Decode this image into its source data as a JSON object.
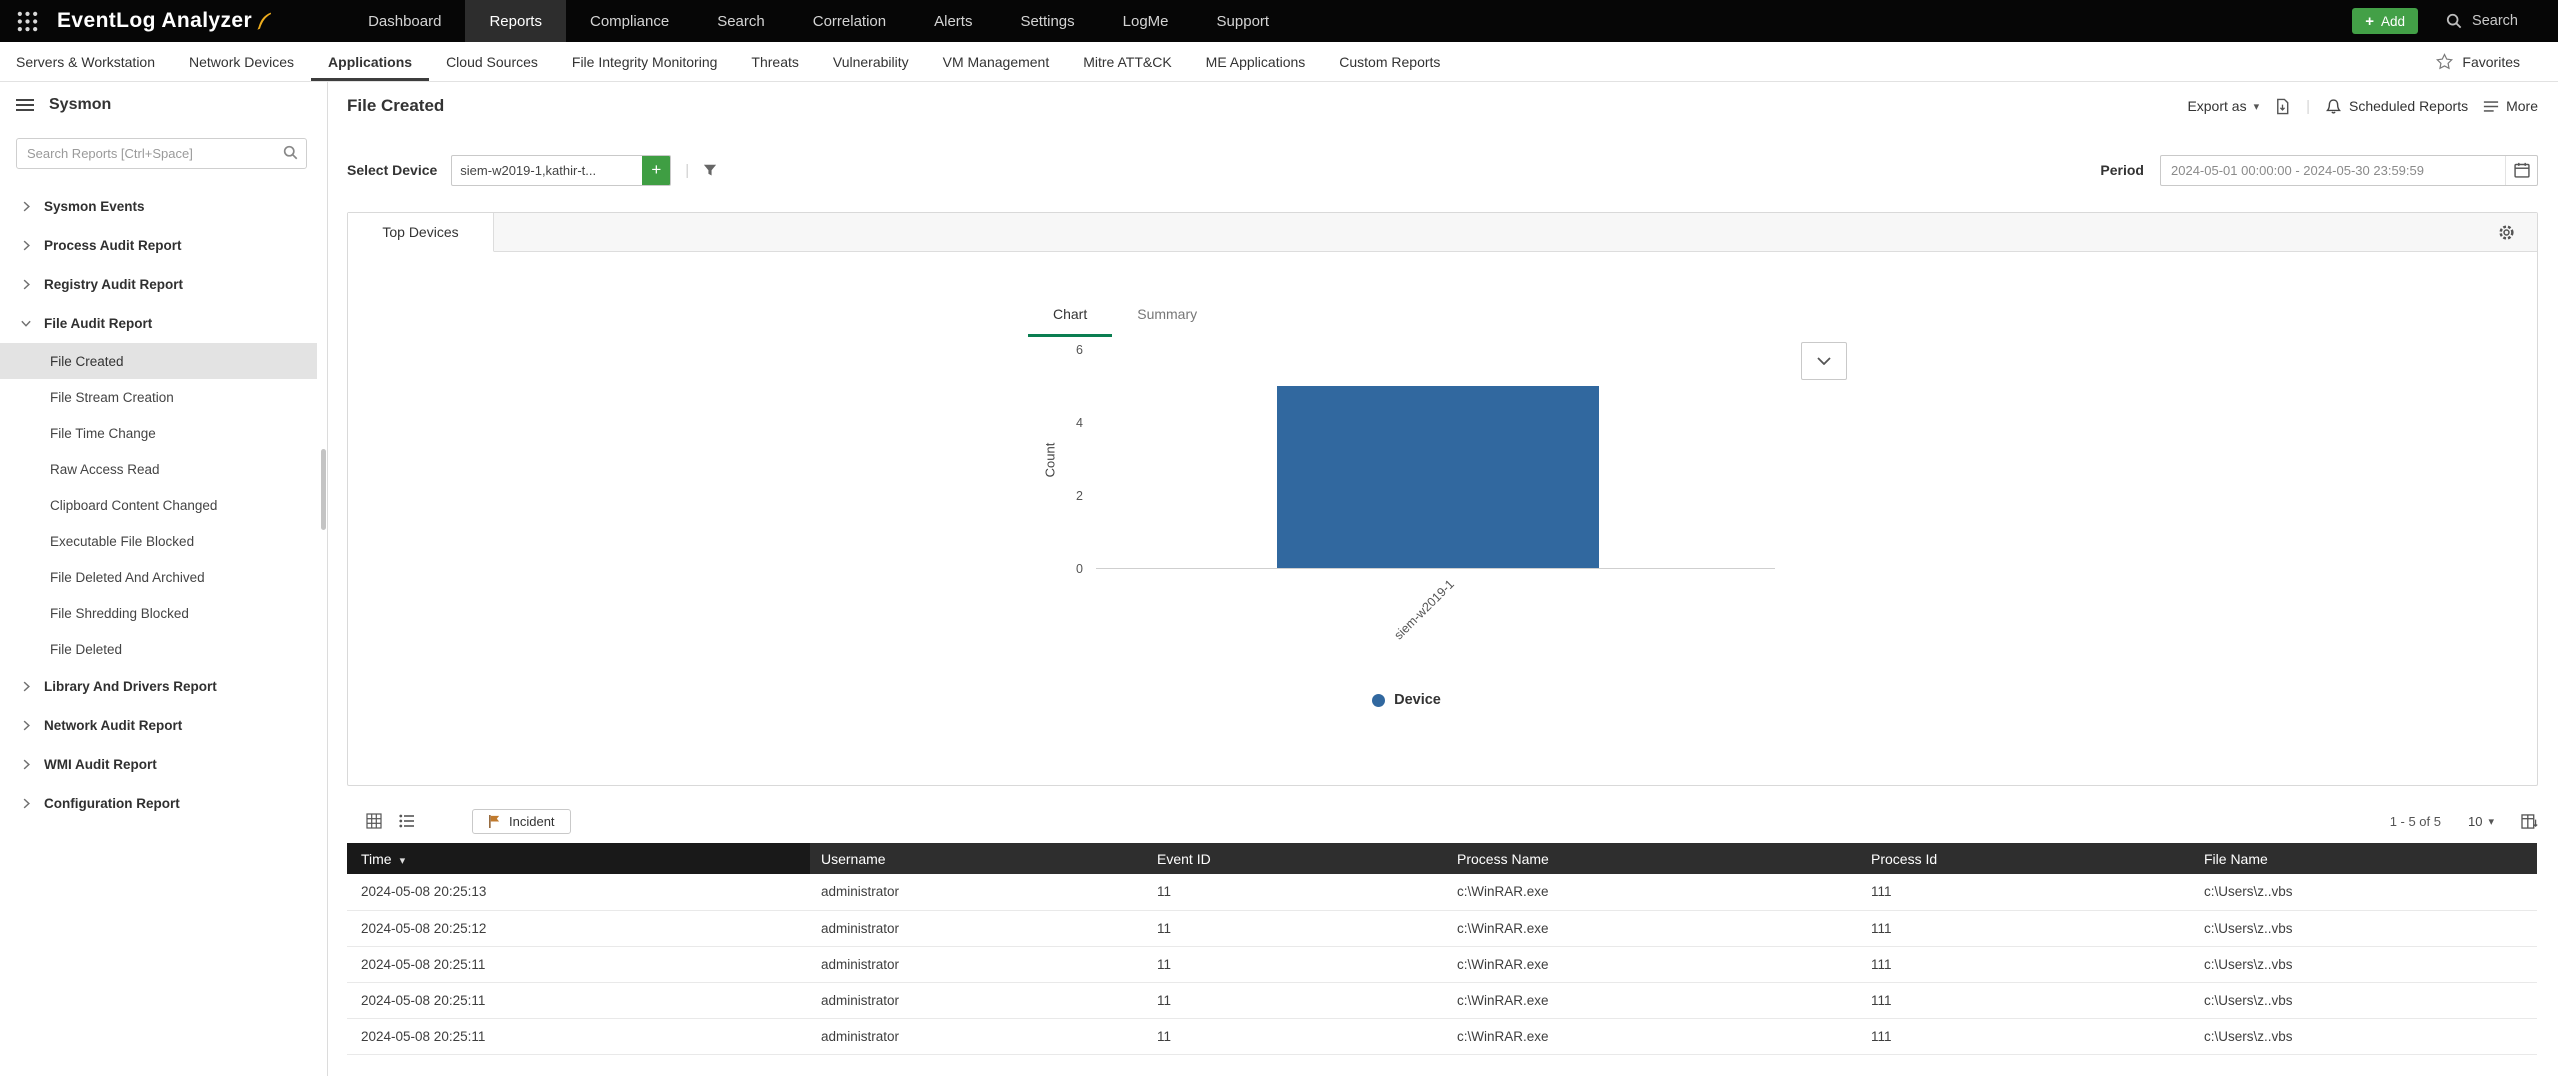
{
  "glyphs": {
    "caret_down": "▾",
    "plus": "+",
    "divider": "|"
  },
  "topbar": {
    "logo": "EventLog Analyzer",
    "nav": [
      {
        "label": "Dashboard"
      },
      {
        "label": "Reports",
        "active": true
      },
      {
        "label": "Compliance"
      },
      {
        "label": "Search"
      },
      {
        "label": "Correlation"
      },
      {
        "label": "Alerts"
      },
      {
        "label": "Settings"
      },
      {
        "label": "LogMe"
      },
      {
        "label": "Support"
      }
    ],
    "add_label": "Add",
    "search_label": "Search"
  },
  "subnav": {
    "items": [
      {
        "label": "Servers & Workstation"
      },
      {
        "label": "Network Devices"
      },
      {
        "label": "Applications",
        "active": true
      },
      {
        "label": "Cloud Sources"
      },
      {
        "label": "File Integrity Monitoring"
      },
      {
        "label": "Threats"
      },
      {
        "label": "Vulnerability"
      },
      {
        "label": "VM Management"
      },
      {
        "label": "Mitre ATT&CK"
      },
      {
        "label": "ME Applications"
      },
      {
        "label": "Custom Reports"
      }
    ],
    "favorites_label": "Favorites"
  },
  "sidebar": {
    "title": "Sysmon",
    "search_placeholder": "Search Reports [Ctrl+Space]",
    "groups": [
      {
        "label": "Sysmon Events",
        "expanded": false
      },
      {
        "label": "Process Audit Report",
        "expanded": false
      },
      {
        "label": "Registry Audit Report",
        "expanded": false
      },
      {
        "label": "File Audit Report",
        "expanded": true,
        "children": [
          {
            "label": "File Created",
            "selected": true
          },
          {
            "label": "File Stream Creation"
          },
          {
            "label": "File Time Change"
          },
          {
            "label": "Raw Access Read"
          },
          {
            "label": "Clipboard Content Changed"
          },
          {
            "label": "Executable File Blocked"
          },
          {
            "label": "File Deleted And Archived"
          },
          {
            "label": "File Shredding Blocked"
          },
          {
            "label": "File Deleted"
          }
        ]
      },
      {
        "label": "Library And Drivers Report",
        "expanded": false
      },
      {
        "label": "Network Audit Report",
        "expanded": false
      },
      {
        "label": "WMI Audit Report",
        "expanded": false
      },
      {
        "label": "Configuration Report",
        "expanded": false
      }
    ]
  },
  "report": {
    "title": "File Created",
    "export_as_label": "Export as",
    "scheduled_reports_label": "Scheduled Reports",
    "more_label": "More",
    "select_device_label": "Select Device",
    "device_value": "siem-w2019-1,kathir-t...",
    "period_label": "Period",
    "period_value": "2024-05-01 00:00:00 - 2024-05-30 23:59:59",
    "panel_tab_label": "Top Devices",
    "chart_tab_label": "Chart",
    "summary_tab_label": "Summary",
    "incident_label": "Incident",
    "pagination_range": "1 - 5 of 5",
    "page_size": "10"
  },
  "chart_data": {
    "type": "bar",
    "title": "Top Devices",
    "categories": [
      "siem-w2019-1"
    ],
    "values": [
      5
    ],
    "xlabel": "",
    "ylabel": "Count",
    "yticks": [
      0,
      2,
      4,
      6
    ],
    "ylim": [
      0,
      6
    ],
    "grid": false,
    "bar_color": "#31689f",
    "legend_position": "bottom",
    "legend": [
      {
        "label": "Device",
        "color": "#31689f"
      }
    ]
  },
  "table": {
    "columns": [
      {
        "label": "Time",
        "sorted": "desc"
      },
      {
        "label": "Username"
      },
      {
        "label": "Event ID"
      },
      {
        "label": "Process Name"
      },
      {
        "label": "Process Id"
      },
      {
        "label": "File Name"
      }
    ],
    "rows": [
      {
        "time": "2024-05-08 20:25:13",
        "username": "administrator",
        "event_id": "11",
        "process_name": "c:\\WinRAR.exe",
        "process_id": "111",
        "file_name": "c:\\Users\\z..vbs"
      },
      {
        "time": "2024-05-08 20:25:12",
        "username": "administrator",
        "event_id": "11",
        "process_name": "c:\\WinRAR.exe",
        "process_id": "111",
        "file_name": "c:\\Users\\z..vbs"
      },
      {
        "time": "2024-05-08 20:25:11",
        "username": "administrator",
        "event_id": "11",
        "process_name": "c:\\WinRAR.exe",
        "process_id": "111",
        "file_name": "c:\\Users\\z..vbs"
      },
      {
        "time": "2024-05-08 20:25:11",
        "username": "administrator",
        "event_id": "11",
        "process_name": "c:\\WinRAR.exe",
        "process_id": "111",
        "file_name": "c:\\Users\\z..vbs"
      },
      {
        "time": "2024-05-08 20:25:11",
        "username": "administrator",
        "event_id": "11",
        "process_name": "c:\\WinRAR.exe",
        "process_id": "111",
        "file_name": "c:\\Users\\z..vbs"
      }
    ]
  },
  "colors": {
    "topbar_bg": "#060606",
    "active_nav_bg": "#2d2d2d",
    "add_button": "#43a047",
    "chart_tab_underline": "#0a7e51",
    "table_header_bg": "#2e2e2e",
    "sorted_column_bg": "#191919",
    "selected_item_bg": "#e3e3e3",
    "bar_blue": "#31689f"
  }
}
